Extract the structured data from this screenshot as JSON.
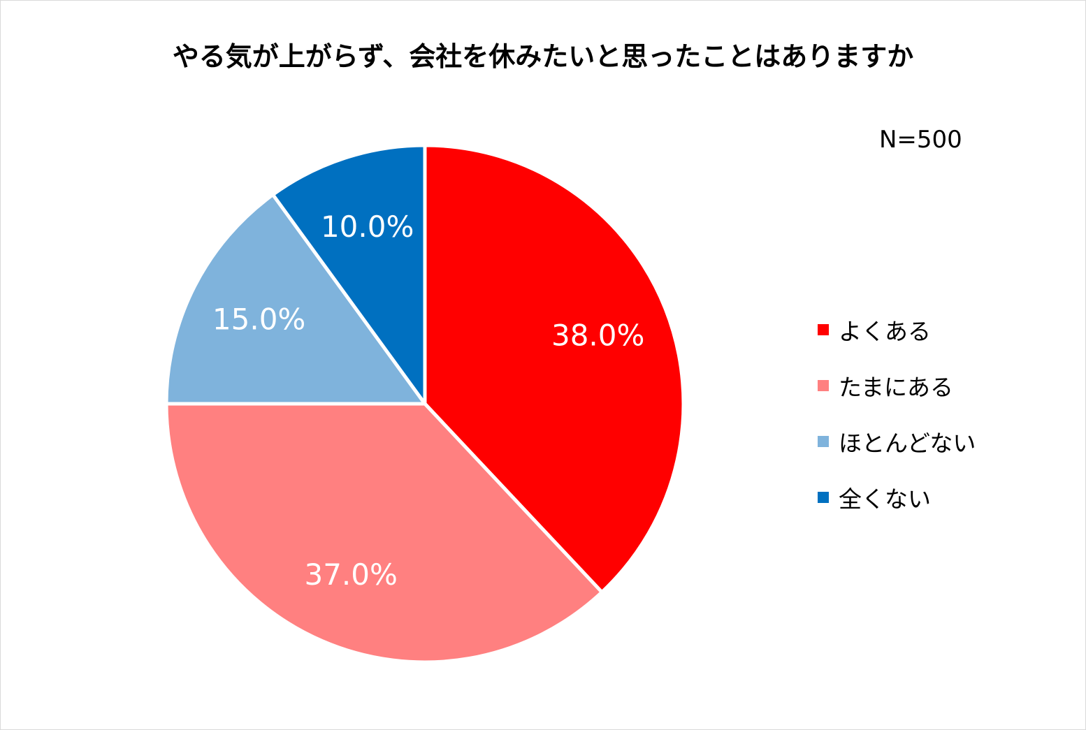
{
  "title": "やる気が上がらず、会社を休みたいと思ったことはありますか",
  "note": "N=500",
  "chart_data": {
    "type": "pie",
    "title": "やる気が上がらず、会社を休みたいと思ったことはありますか",
    "legend_position": "right",
    "slices": [
      {
        "label": "よくある",
        "value": 38.0,
        "display": "38.0%",
        "color": "#ff0000"
      },
      {
        "label": "たまにある",
        "value": 37.0,
        "display": "37.0%",
        "color": "#ff8080"
      },
      {
        "label": "ほとんどない",
        "value": 15.0,
        "display": "15.0%",
        "color": "#7fb3dc"
      },
      {
        "label": "全くない",
        "value": 10.0,
        "display": "10.0%",
        "color": "#0070c0"
      }
    ]
  }
}
